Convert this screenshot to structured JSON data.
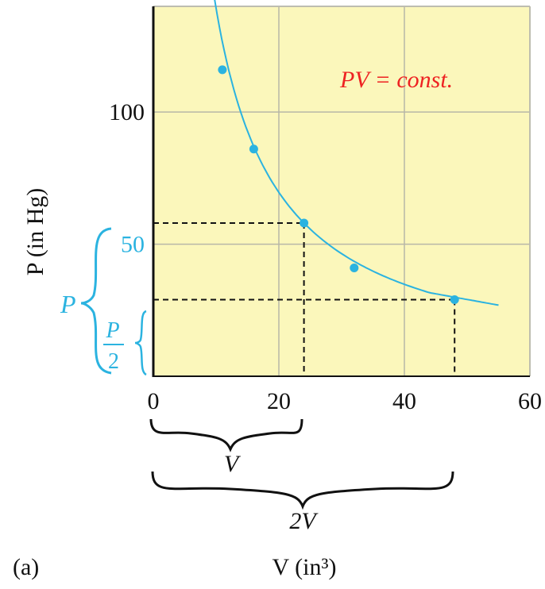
{
  "chart_data": {
    "type": "line",
    "panel_label": "(a)",
    "xlabel": "V (in³)",
    "ylabel": "P (in Hg)",
    "xlim": [
      0,
      60
    ],
    "ylim": [
      0,
      140
    ],
    "x_ticks": [
      0,
      20,
      40,
      60
    ],
    "y_ticks": [
      50,
      100
    ],
    "grid": true,
    "annotation": "PV = const.",
    "series": [
      {
        "points": [
          [
            11,
            116
          ],
          [
            16,
            86
          ],
          [
            24,
            58
          ],
          [
            32,
            41
          ],
          [
            48,
            29
          ]
        ]
      }
    ],
    "curve": {
      "pv_constant": 1392,
      "x_range": [
        9,
        55
      ]
    },
    "guides": [
      {
        "x": 24,
        "y": 58
      },
      {
        "x": 48,
        "y": 29
      }
    ],
    "bracket_labels": {
      "v": "V",
      "two_v": "2V",
      "p_upper": "P",
      "p_lower_num": "P",
      "p_lower_den": "2"
    },
    "colors": {
      "plot_bg": "#fbf7bb",
      "grid": "#b7b7a8",
      "curve": "#2bb3e0",
      "annotation": "#ee2222",
      "axis": "#111111"
    }
  }
}
